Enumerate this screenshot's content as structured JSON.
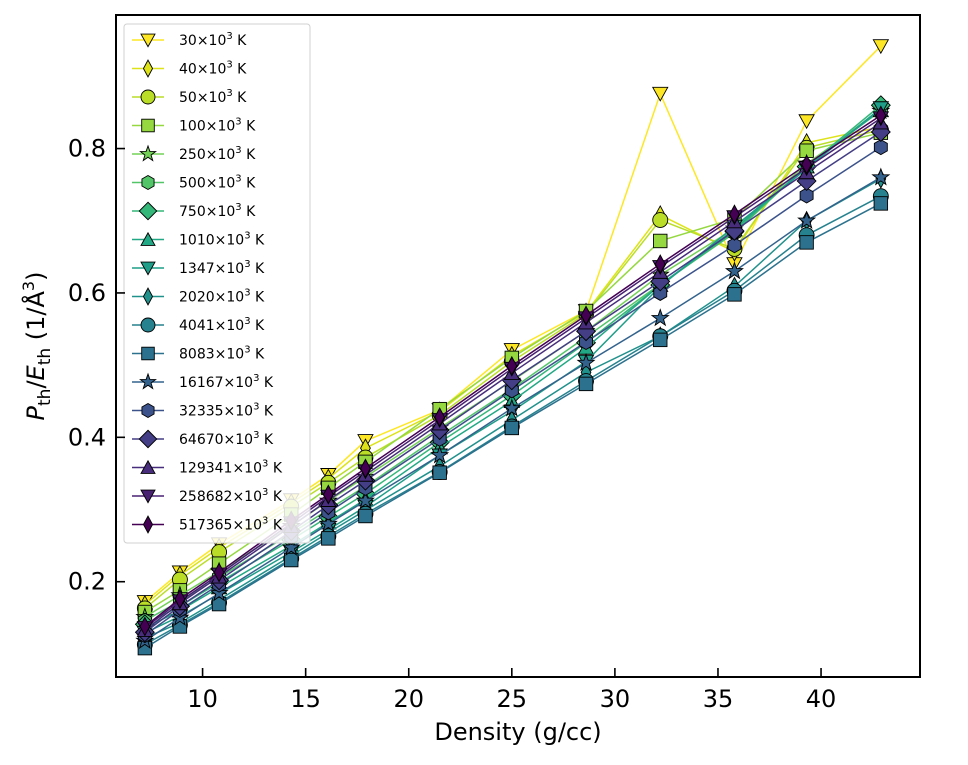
{
  "chart_data": {
    "type": "line",
    "title": "",
    "xlabel": "Density (g/cc)",
    "ylabel": {
      "main": "P",
      "sub1": "th",
      "slash": "/",
      "main2": "E",
      "sub2": "th",
      "unit": " (1/Å",
      "sup": "3",
      "close": ")"
    },
    "xlim": [
      5.8,
      44.8
    ],
    "ylim": [
      0.068,
      0.985
    ],
    "xticks": [
      10,
      15,
      20,
      25,
      30,
      35,
      40
    ],
    "yticks": [
      0.2,
      0.4,
      0.6,
      0.8
    ],
    "ytick_labels": [
      "0.2",
      "0.4",
      "0.6",
      "0.8"
    ],
    "grid": false,
    "legend_position": "upper-left",
    "unit_label": "×10",
    "unit_exp": "3",
    "unit_suffix": " K",
    "x": [
      7.2,
      8.9,
      10.8,
      14.3,
      16.1,
      17.9,
      21.5,
      25.0,
      28.6,
      32.2,
      35.8,
      39.3,
      42.9
    ],
    "series": [
      {
        "name": "30",
        "color": "#fde725",
        "marker": "tri-down",
        "values": [
          0.172,
          0.213,
          0.252,
          0.313,
          0.348,
          0.395,
          0.438,
          0.521,
          0.575,
          0.876,
          0.64,
          0.838,
          0.942
        ]
      },
      {
        "name": "40",
        "color": "#dde318",
        "marker": "thin-diamond",
        "values": [
          0.168,
          0.209,
          0.247,
          0.309,
          0.343,
          0.385,
          0.436,
          0.513,
          0.573,
          0.708,
          0.657,
          0.808,
          0.83
        ]
      },
      {
        "name": "50",
        "color": "#bade28",
        "marker": "circle",
        "values": [
          0.163,
          0.203,
          0.241,
          0.304,
          0.337,
          0.372,
          0.431,
          0.505,
          0.571,
          0.701,
          0.661,
          0.801,
          0.826
        ]
      },
      {
        "name": "100",
        "color": "#95d840",
        "marker": "square",
        "values": [
          0.158,
          0.188,
          0.225,
          0.293,
          0.33,
          0.366,
          0.439,
          0.51,
          0.575,
          0.672,
          0.703,
          0.797,
          0.822
        ]
      },
      {
        "name": "250",
        "color": "#73d056",
        "marker": "star",
        "values": [
          0.151,
          0.181,
          0.214,
          0.277,
          0.312,
          0.345,
          0.413,
          0.478,
          0.547,
          0.625,
          0.689,
          0.779,
          0.852
        ]
      },
      {
        "name": "500",
        "color": "#52c569",
        "marker": "hexagon",
        "values": [
          0.146,
          0.173,
          0.206,
          0.267,
          0.3,
          0.332,
          0.402,
          0.467,
          0.539,
          0.612,
          0.683,
          0.776,
          0.855
        ]
      },
      {
        "name": "750",
        "color": "#35b779",
        "marker": "diamond",
        "values": [
          0.141,
          0.166,
          0.199,
          0.258,
          0.29,
          0.322,
          0.393,
          0.458,
          0.531,
          0.611,
          0.685,
          0.775,
          0.86
        ]
      },
      {
        "name": "1010",
        "color": "#22a884",
        "marker": "tri-up",
        "values": [
          0.136,
          0.16,
          0.192,
          0.25,
          0.282,
          0.314,
          0.386,
          0.45,
          0.524,
          0.611,
          0.688,
          0.775,
          0.853
        ]
      },
      {
        "name": "1347",
        "color": "#1f9e89",
        "marker": "tri-down",
        "values": [
          0.129,
          0.152,
          0.183,
          0.241,
          0.272,
          0.304,
          0.375,
          0.436,
          0.505,
          0.609,
          0.692,
          0.772,
          0.856
        ]
      },
      {
        "name": "2020",
        "color": "#21918c",
        "marker": "thin-diamond",
        "values": [
          0.122,
          0.143,
          0.175,
          0.236,
          0.268,
          0.299,
          0.36,
          0.424,
          0.49,
          0.54,
          0.609,
          0.7,
          0.758
        ]
      },
      {
        "name": "4041",
        "color": "#26828e",
        "marker": "circle",
        "values": [
          0.113,
          0.14,
          0.171,
          0.232,
          0.263,
          0.294,
          0.352,
          0.415,
          0.478,
          0.54,
          0.603,
          0.68,
          0.734
        ]
      },
      {
        "name": "8083",
        "color": "#2c728e",
        "marker": "square",
        "values": [
          0.108,
          0.138,
          0.169,
          0.23,
          0.26,
          0.291,
          0.351,
          0.413,
          0.474,
          0.535,
          0.598,
          0.67,
          0.724
        ]
      },
      {
        "name": "16167",
        "color": "#33638d",
        "marker": "star",
        "values": [
          0.118,
          0.15,
          0.184,
          0.247,
          0.28,
          0.312,
          0.375,
          0.44,
          0.503,
          0.565,
          0.63,
          0.7,
          0.76
        ]
      },
      {
        "name": "32335",
        "color": "#3b528b",
        "marker": "hexagon",
        "values": [
          0.126,
          0.161,
          0.196,
          0.262,
          0.296,
          0.33,
          0.398,
          0.465,
          0.532,
          0.6,
          0.666,
          0.735,
          0.802
        ]
      },
      {
        "name": "64670",
        "color": "#433e85",
        "marker": "diamond",
        "values": [
          0.13,
          0.166,
          0.202,
          0.27,
          0.306,
          0.34,
          0.41,
          0.479,
          0.547,
          0.616,
          0.686,
          0.755,
          0.823
        ]
      },
      {
        "name": "129341",
        "color": "#472d7b",
        "marker": "tri-up",
        "values": [
          0.133,
          0.17,
          0.207,
          0.277,
          0.313,
          0.348,
          0.419,
          0.489,
          0.559,
          0.629,
          0.699,
          0.767,
          0.836
        ]
      },
      {
        "name": "258682",
        "color": "#482173",
        "marker": "tri-down",
        "values": [
          0.136,
          0.173,
          0.21,
          0.281,
          0.318,
          0.353,
          0.424,
          0.495,
          0.565,
          0.636,
          0.705,
          0.773,
          0.842
        ]
      },
      {
        "name": "517365",
        "color": "#440154",
        "marker": "thin-diamond",
        "values": [
          0.138,
          0.176,
          0.213,
          0.285,
          0.321,
          0.357,
          0.428,
          0.499,
          0.569,
          0.64,
          0.709,
          0.778,
          0.846
        ]
      }
    ]
  }
}
